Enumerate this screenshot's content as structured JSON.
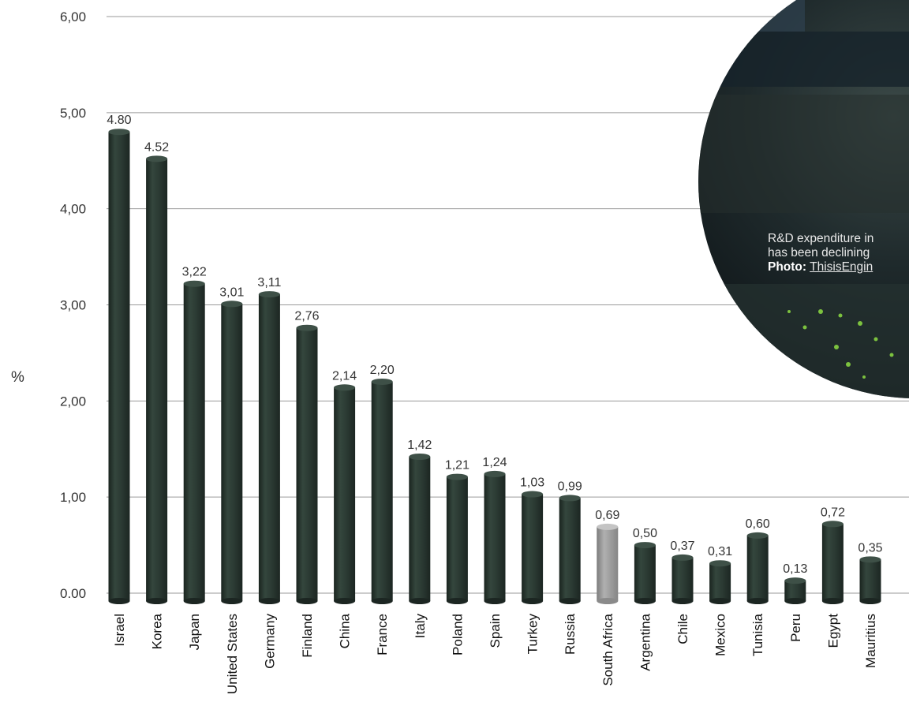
{
  "chart_data": {
    "type": "bar",
    "ylabel": "%",
    "ylim": [
      0,
      6
    ],
    "y_ticks": [
      {
        "value": 0,
        "label": "0.00"
      },
      {
        "value": 1,
        "label": "1,00"
      },
      {
        "value": 2,
        "label": "2,00"
      },
      {
        "value": 3,
        "label": "3,00"
      },
      {
        "value": 4,
        "label": "4,00"
      },
      {
        "value": 5,
        "label": "5,00"
      },
      {
        "value": 6,
        "label": "6,00"
      }
    ],
    "grid": true,
    "categories": [
      "Israel",
      "Korea",
      "Japan",
      "United States",
      "Germany",
      "Finland",
      "China",
      "France",
      "Italy",
      "Poland",
      "Spain",
      "Turkey",
      "Russia",
      "South Africa",
      "Argentina",
      "Chile",
      "Mexico",
      "Tunisia",
      "Peru",
      "Egypt",
      "Mauritius"
    ],
    "values": [
      4.8,
      4.52,
      3.22,
      3.01,
      3.11,
      2.76,
      2.14,
      2.2,
      1.42,
      1.21,
      1.24,
      1.03,
      0.99,
      0.69,
      0.5,
      0.37,
      0.31,
      0.6,
      0.13,
      0.72,
      0.35
    ],
    "value_labels": [
      "4.80",
      "4.52",
      "3,22",
      "3,01",
      "3,11",
      "2,76",
      "2,14",
      "2,20",
      "1,42",
      "1,21",
      "1,24",
      "1,03",
      "0,99",
      "0,69",
      "0,50",
      "0,37",
      "0,31",
      "0,60",
      "0,13",
      "0,72",
      "0,35"
    ],
    "highlight_category": "South Africa",
    "colors": {
      "bar": "#2b3a33",
      "highlight": "#9a9a9a",
      "grid": "#9a9a9a"
    }
  },
  "photo_caption": {
    "line1": "R&D expenditure in",
    "line2": "has been declining",
    "photo_label": "Photo:",
    "photo_credit": "ThisisEngin"
  }
}
